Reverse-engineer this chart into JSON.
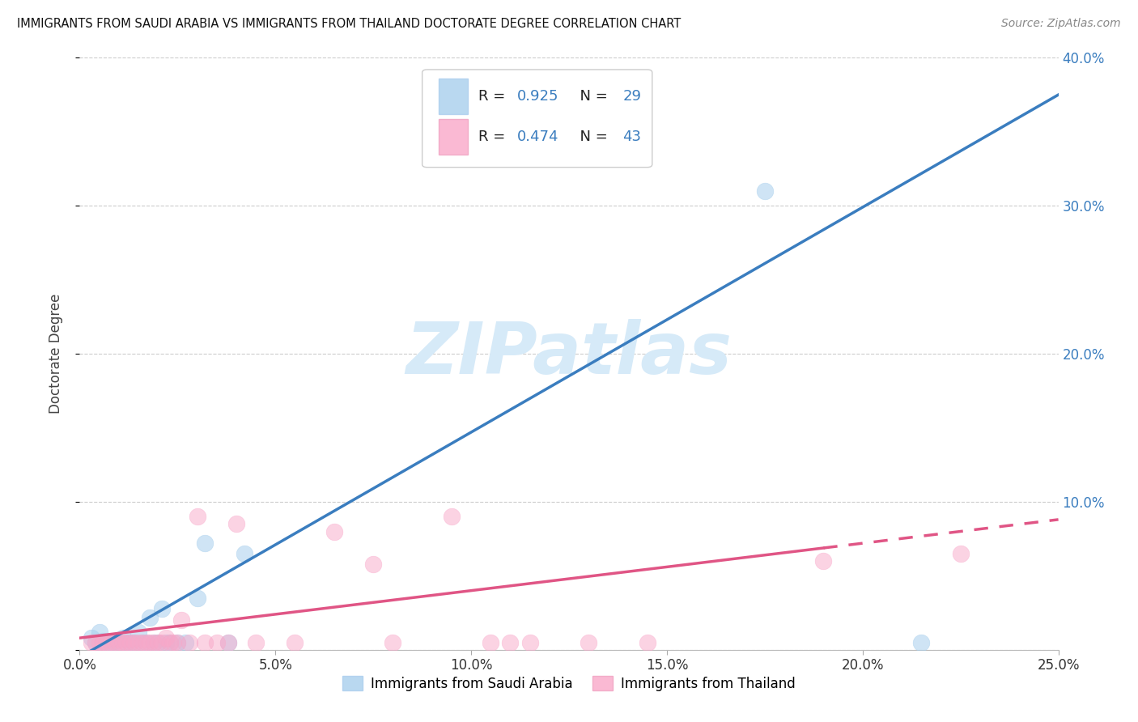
{
  "title": "IMMIGRANTS FROM SAUDI ARABIA VS IMMIGRANTS FROM THAILAND DOCTORATE DEGREE CORRELATION CHART",
  "source": "Source: ZipAtlas.com",
  "ylabel": "Doctorate Degree",
  "xlim": [
    0.0,
    0.25
  ],
  "ylim": [
    0.0,
    0.4
  ],
  "yticks": [
    0.0,
    0.1,
    0.2,
    0.3,
    0.4
  ],
  "ytick_labels_right": [
    "",
    "10.0%",
    "20.0%",
    "30.0%",
    "40.0%"
  ],
  "xtick_labels": [
    "0.0%",
    "5.0%",
    "10.0%",
    "15.0%",
    "20.0%",
    "25.0%"
  ],
  "xticks": [
    0.0,
    0.05,
    0.1,
    0.15,
    0.2,
    0.25
  ],
  "saudi_color": "#a8cfed",
  "thai_color": "#f9a8c9",
  "saudi_line_color": "#3a7dbf",
  "thai_line_color": "#e05585",
  "watermark": "ZIPatlas",
  "watermark_color": "#d6eaf8",
  "saudi_scatter_x": [
    0.003,
    0.004,
    0.005,
    0.006,
    0.007,
    0.008,
    0.009,
    0.01,
    0.011,
    0.012,
    0.013,
    0.014,
    0.015,
    0.016,
    0.017,
    0.018,
    0.019,
    0.02,
    0.021,
    0.022,
    0.023,
    0.025,
    0.027,
    0.03,
    0.032,
    0.038,
    0.042,
    0.175,
    0.215
  ],
  "saudi_scatter_y": [
    0.008,
    0.005,
    0.012,
    0.006,
    0.005,
    0.005,
    0.006,
    0.005,
    0.008,
    0.005,
    0.005,
    0.005,
    0.012,
    0.005,
    0.005,
    0.022,
    0.005,
    0.005,
    0.028,
    0.005,
    0.005,
    0.005,
    0.005,
    0.035,
    0.072,
    0.005,
    0.065,
    0.31,
    0.005
  ],
  "saudi_line_x": [
    0.0,
    0.25
  ],
  "saudi_line_y": [
    -0.005,
    0.375
  ],
  "thai_scatter_x": [
    0.003,
    0.004,
    0.005,
    0.006,
    0.007,
    0.008,
    0.009,
    0.01,
    0.011,
    0.012,
    0.013,
    0.014,
    0.015,
    0.016,
    0.017,
    0.018,
    0.019,
    0.02,
    0.021,
    0.022,
    0.023,
    0.024,
    0.025,
    0.026,
    0.028,
    0.03,
    0.032,
    0.035,
    0.038,
    0.04,
    0.045,
    0.055,
    0.065,
    0.075,
    0.08,
    0.095,
    0.105,
    0.11,
    0.115,
    0.13,
    0.145,
    0.19,
    0.225
  ],
  "thai_scatter_y": [
    0.005,
    0.005,
    0.005,
    0.005,
    0.005,
    0.005,
    0.005,
    0.005,
    0.005,
    0.005,
    0.005,
    0.005,
    0.005,
    0.005,
    0.005,
    0.005,
    0.005,
    0.005,
    0.005,
    0.008,
    0.005,
    0.005,
    0.005,
    0.02,
    0.005,
    0.09,
    0.005,
    0.005,
    0.005,
    0.085,
    0.005,
    0.005,
    0.08,
    0.058,
    0.005,
    0.09,
    0.005,
    0.005,
    0.005,
    0.005,
    0.005,
    0.06,
    0.065
  ],
  "thai_line_x": [
    0.0,
    0.25
  ],
  "thai_line_y": [
    0.008,
    0.088
  ],
  "thai_line_solid_end": 0.19,
  "legend_label_saudi": "Immigrants from Saudi Arabia",
  "legend_label_thai": "Immigrants from Thailand"
}
